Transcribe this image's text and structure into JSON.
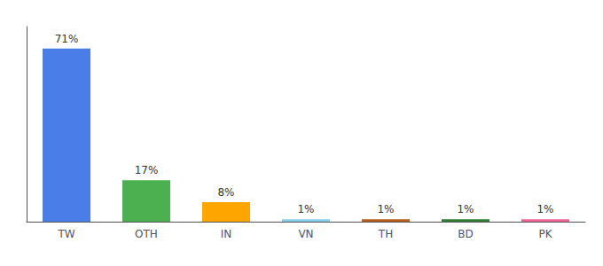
{
  "chart_data": {
    "type": "bar",
    "categories": [
      "TW",
      "OTH",
      "IN",
      "VN",
      "TH",
      "BD",
      "PK"
    ],
    "values": [
      71,
      17,
      8,
      1,
      1,
      1,
      1
    ],
    "value_labels": [
      "71%",
      "17%",
      "8%",
      "1%",
      "1%",
      "1%",
      "1%"
    ],
    "colors": [
      "#4a7de8",
      "#4caf50",
      "#ffa500",
      "#87ceeb",
      "#b85c1a",
      "#2e7d32",
      "#f06292"
    ],
    "ylim": [
      0,
      80
    ],
    "grid": false,
    "data_labels": true,
    "tick_labels": "x"
  }
}
